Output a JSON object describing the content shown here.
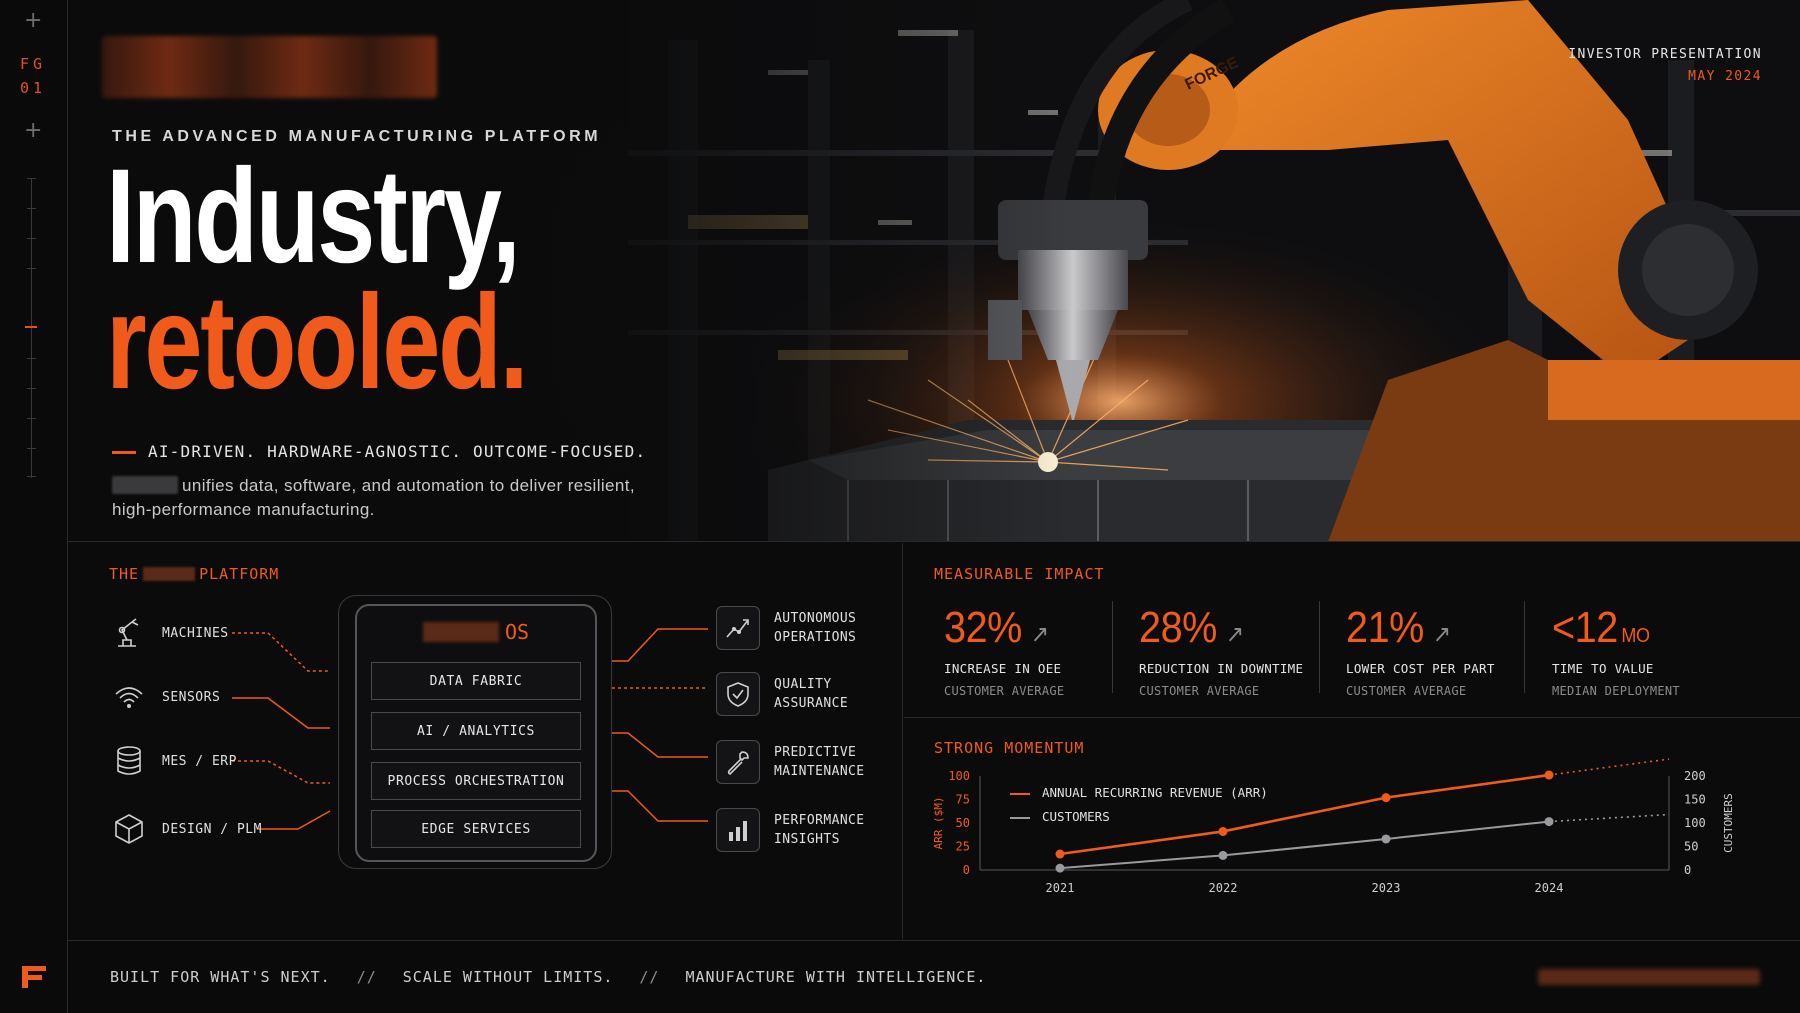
{
  "rail": {
    "code_line1": "FG",
    "code_line2": "01"
  },
  "hero": {
    "eyebrow": "THE ADVANCED MANUFACTURING PLATFORM",
    "headline_line1": "Industry,",
    "headline_line2": "retooled.",
    "tagline": "AI-DRIVEN. HARDWARE-AGNOSTIC. OUTCOME-FOCUSED.",
    "description": "unifies data, software, and automation to deliver resilient, high-performance manufacturing.",
    "photo_label": "FORGE",
    "investor_label": "INVESTOR PRESENTATION",
    "date": "MAY 2024"
  },
  "platform": {
    "title_prefix": "THE",
    "title_suffix": "PLATFORM",
    "sources": [
      {
        "label": "MACHINES",
        "icon": "robot-arm-icon"
      },
      {
        "label": "SENSORS",
        "icon": "wifi-signal-icon"
      },
      {
        "label": "MES / ERP",
        "icon": "database-icon"
      },
      {
        "label": "DESIGN / PLM",
        "icon": "cube-icon"
      }
    ],
    "os_suffix": "OS",
    "layers": [
      "DATA FABRIC",
      "AI / ANALYTICS",
      "PROCESS ORCHESTRATION",
      "EDGE SERVICES"
    ],
    "outcomes": [
      {
        "line1": "AUTONOMOUS",
        "line2": "OPERATIONS",
        "icon": "trend-line-icon"
      },
      {
        "line1": "QUALITY",
        "line2": "ASSURANCE",
        "icon": "shield-check-icon"
      },
      {
        "line1": "PREDICTIVE",
        "line2": "MAINTENANCE",
        "icon": "wrench-icon"
      },
      {
        "line1": "PERFORMANCE",
        "line2": "INSIGHTS",
        "icon": "bar-chart-icon"
      }
    ]
  },
  "impact": {
    "title": "MEASURABLE IMPACT",
    "kpis": [
      {
        "value": "32%",
        "unit": "",
        "label": "INCREASE IN OEE",
        "sub": "CUSTOMER AVERAGE",
        "arrow": "↗"
      },
      {
        "value": "28%",
        "unit": "",
        "label": "REDUCTION IN DOWNTIME",
        "sub": "CUSTOMER AVERAGE",
        "arrow": "↗"
      },
      {
        "value": "21%",
        "unit": "",
        "label": "LOWER COST PER PART",
        "sub": "CUSTOMER AVERAGE",
        "arrow": "↗"
      },
      {
        "value": "<12",
        "unit": "MO",
        "label": "TIME TO VALUE",
        "sub": "MEDIAN DEPLOYMENT",
        "arrow": ""
      }
    ]
  },
  "momentum": {
    "title": "STRONG MOMENTUM"
  },
  "chart_data": {
    "type": "line",
    "x": [
      "2021",
      "2022",
      "2023",
      "2024"
    ],
    "series": [
      {
        "name": "ANNUAL RECURRING REVENUE (ARR)",
        "axis": "left",
        "color": "#f05a1a",
        "values": [
          17,
          41,
          77,
          101
        ],
        "projected_2025": 118
      },
      {
        "name": "CUSTOMERS",
        "axis": "right",
        "color": "#9a9a9e",
        "values": [
          4,
          31,
          66,
          103
        ],
        "projected_2025": 118
      }
    ],
    "ylabel_left": "ARR ($M)",
    "ylabel_right": "CUSTOMERS",
    "ylim_left": [
      0,
      100
    ],
    "ylim_right": [
      0,
      200
    ],
    "yticks_left": [
      "0",
      "25",
      "50",
      "75",
      "100"
    ],
    "yticks_right": [
      "0",
      "50",
      "100",
      "150",
      "200"
    ],
    "projection": "dotted",
    "grid": false,
    "legend": "top-left"
  },
  "footer": {
    "tag1": "BUILT FOR WHAT'S NEXT.",
    "tag2": "SCALE WITHOUT LIMITS.",
    "tag3": "MANUFACTURE WITH INTELLIGENCE.",
    "separator": "//"
  },
  "colors": {
    "accent": "#f05a1a",
    "background": "#0b0b0c",
    "muted": "#8c8c90"
  }
}
